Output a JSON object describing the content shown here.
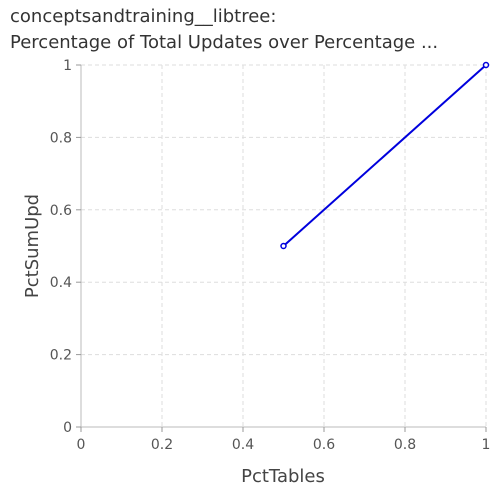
{
  "chart_data": {
    "type": "line",
    "title_lines": [
      "conceptsandtraining__libtree:",
      "Percentage of Total Updates over Percentage ..."
    ],
    "xlabel": "PctTables",
    "ylabel": "PctSumUpd",
    "xlim": [
      0,
      1
    ],
    "ylim": [
      0,
      1
    ],
    "xticks": [
      "0",
      "0.2",
      "0.4",
      "0.6",
      "0.8",
      "1"
    ],
    "yticks": [
      "0",
      "0.2",
      "0.4",
      "0.6",
      "0.8",
      "1"
    ],
    "grid": true,
    "series": [
      {
        "x": [
          0.5,
          1.0
        ],
        "y": [
          0.5,
          1.0
        ],
        "color": "#0000dd"
      }
    ]
  }
}
